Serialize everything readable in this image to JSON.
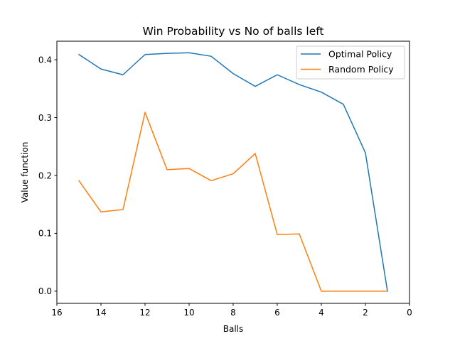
{
  "chart_data": {
    "type": "line",
    "title": "Win Probability vs No of balls left",
    "xlabel": "Balls",
    "ylabel": "Value function",
    "xlim": [
      16,
      0
    ],
    "ylim": [
      -0.021,
      0.432
    ],
    "xticks": [
      16,
      14,
      12,
      10,
      8,
      6,
      4,
      2,
      0
    ],
    "yticks": [
      0.0,
      0.1,
      0.2,
      0.3,
      0.4
    ],
    "xtick_labels": [
      "16",
      "14",
      "12",
      "10",
      "8",
      "6",
      "4",
      "2",
      "0"
    ],
    "ytick_labels": [
      "0.0",
      "0.1",
      "0.2",
      "0.3",
      "0.4"
    ],
    "x_inverted": true,
    "grid": false,
    "legend_position": "top-right",
    "x": [
      15,
      14,
      13,
      12,
      11,
      10,
      9,
      8,
      7,
      6,
      5,
      4,
      3,
      2,
      1
    ],
    "series": [
      {
        "name": "Optimal Policy",
        "color": "#1f77b4",
        "values": [
          0.409,
          0.384,
          0.374,
          0.409,
          0.411,
          0.412,
          0.406,
          0.376,
          0.354,
          0.374,
          0.357,
          0.344,
          0.323,
          0.239,
          0.0
        ]
      },
      {
        "name": "Random Policy",
        "color": "#ff7f0e",
        "values": [
          0.191,
          0.137,
          0.141,
          0.309,
          0.21,
          0.212,
          0.191,
          0.203,
          0.238,
          0.098,
          0.099,
          0.0,
          0.0,
          0.0,
          0.0
        ]
      }
    ]
  }
}
